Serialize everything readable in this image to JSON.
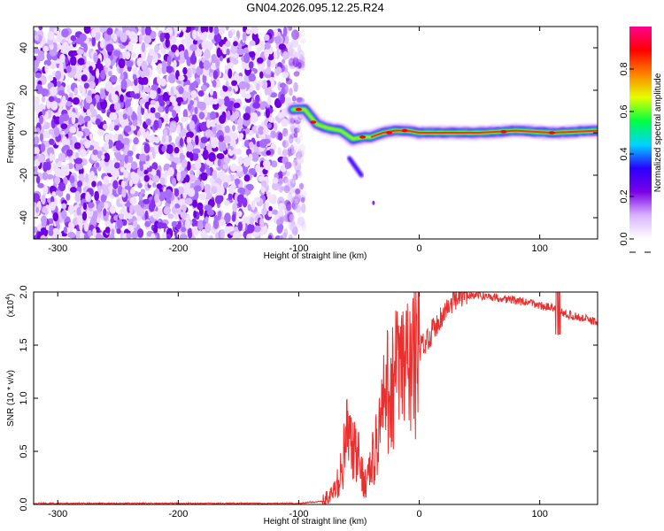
{
  "chart_data": [
    {
      "type": "heatmap",
      "title": "GN04.2026.095.12.25.R24",
      "xlabel": "Height of straight line (km)",
      "ylabel": "Frequency (Hz)",
      "xlim": [
        -320,
        148
      ],
      "ylim": [
        -50,
        50
      ],
      "xticks": [
        -300,
        -200,
        -100,
        0,
        100
      ],
      "yticks": [
        -40,
        -20,
        0,
        20,
        40
      ],
      "colorbar": {
        "label": "Normalized spectral amplitude",
        "range": [
          0,
          1
        ],
        "ticks": [
          "0.0",
          "0.2",
          "0.4",
          "0.6",
          "0.8"
        ],
        "colormap": [
          "#ffffff",
          "#d9b3ff",
          "#7a00e6",
          "#2a00ff",
          "#00d4ff",
          "#00ff40",
          "#e6ff00",
          "#ff8000",
          "#ff0000",
          "#ff0090"
        ]
      },
      "ridge": {
        "x": [
          -105,
          -95,
          -85,
          -75,
          -65,
          -55,
          -45,
          -40,
          -30,
          -20,
          -10,
          0,
          20,
          50,
          80,
          110,
          148
        ],
        "y": [
          11,
          11,
          4,
          2,
          1,
          -3,
          -2,
          -2,
          0,
          1,
          1,
          0,
          0,
          0,
          1,
          0,
          1
        ]
      },
      "noise_region": {
        "x": [
          -320,
          -100
        ],
        "y": [
          -50,
          50
        ]
      },
      "side_branch": {
        "x": [
          -58,
          -48
        ],
        "y": [
          -12,
          -20
        ]
      }
    },
    {
      "type": "line",
      "xlabel": "Height of straight line (km)",
      "ylabel": "SNR (10 * v/v)",
      "y_exponent": "(x10",
      "y_exponent_power": "4",
      "xlim": [
        -320,
        148
      ],
      "ylim": [
        0,
        2.0
      ],
      "xticks": [
        -300,
        -200,
        -100,
        0,
        100
      ],
      "yticks": [
        "0.0",
        "0.5",
        "1.0",
        "1.5",
        "2.0"
      ],
      "series": [
        {
          "color": "#e8302f",
          "x": [
            -320,
            -100,
            -80,
            -70,
            -65,
            -60,
            -55,
            -50,
            -45,
            -40,
            -35,
            -30,
            -25,
            -20,
            -15,
            -10,
            -5,
            0,
            10,
            20,
            30,
            40,
            50,
            70,
            90,
            110,
            115,
            120,
            140,
            148
          ],
          "y": [
            0.01,
            0.01,
            0.03,
            0.12,
            0.3,
            0.65,
            0.5,
            0.4,
            0.2,
            0.35,
            0.6,
            0.9,
            1.1,
            1.2,
            1.25,
            1.3,
            1.35,
            1.45,
            1.62,
            1.8,
            1.93,
            1.98,
            1.97,
            1.94,
            1.9,
            1.85,
            1.82,
            1.8,
            1.74,
            1.72
          ]
        }
      ]
    }
  ]
}
